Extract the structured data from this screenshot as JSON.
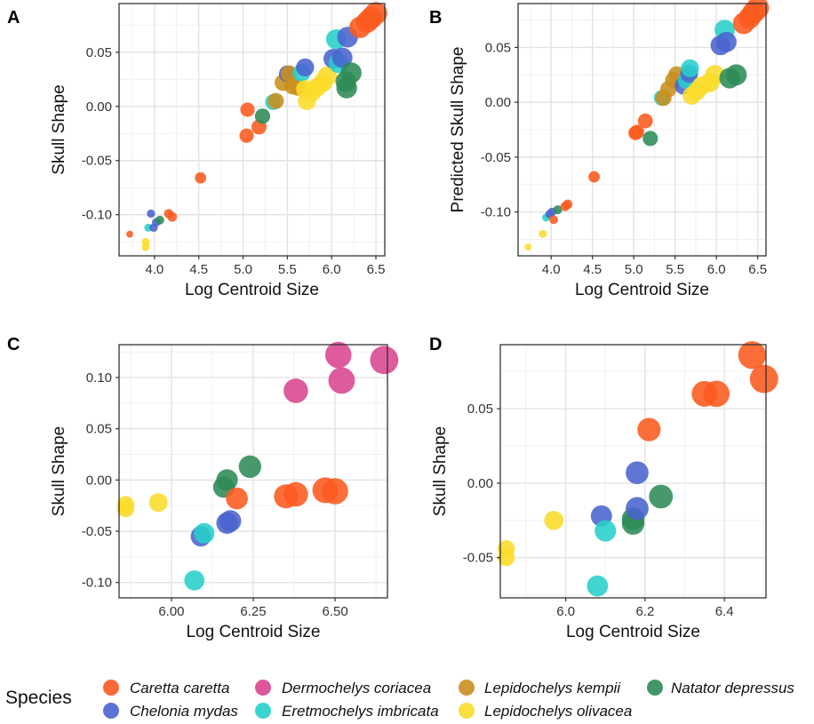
{
  "legend": {
    "title": "Species",
    "species": [
      {
        "name": "Caretta caretta",
        "color": "#FB5A1E"
      },
      {
        "name": "Chelonia mydas",
        "color": "#4A63CF"
      },
      {
        "name": "Dermochelys coriacea",
        "color": "#D9448F"
      },
      {
        "name": "Eretmochelys imbricata",
        "color": "#27CFCB"
      },
      {
        "name": "Lepidochelys kempii",
        "color": "#C98F1E"
      },
      {
        "name": "Lepidochelys olivacea",
        "color": "#FADC2A"
      },
      {
        "name": "Natator depressus",
        "color": "#2E8B57"
      }
    ]
  },
  "chart_data": [
    {
      "panel": "A",
      "type": "scatter",
      "xlabel": "Log Centroid Size",
      "ylabel": "Skull Shape",
      "xlim": [
        3.6,
        6.6
      ],
      "ylim": [
        -0.138,
        0.095
      ],
      "xticks": [
        4.0,
        4.5,
        5.0,
        5.5,
        6.0,
        6.5
      ],
      "xtick_labels": [
        "4.0",
        "4.5",
        "5.0",
        "5.5",
        "6.0",
        "6.5"
      ],
      "yticks": [
        -0.1,
        -0.05,
        0.0,
        0.05
      ],
      "ytick_labels": [
        "-0.10",
        "-0.05",
        "0.00",
        "0.05"
      ],
      "grid": true,
      "points": [
        {
          "x": 3.72,
          "y": -0.118,
          "s": 0
        },
        {
          "x": 3.9,
          "y": -0.125,
          "s": 5
        },
        {
          "x": 3.9,
          "y": -0.13,
          "s": 5
        },
        {
          "x": 3.93,
          "y": -0.112,
          "s": 3
        },
        {
          "x": 3.96,
          "y": -0.099,
          "s": 1
        },
        {
          "x": 3.99,
          "y": -0.112,
          "s": 1
        },
        {
          "x": 4.02,
          "y": -0.107,
          "s": 1
        },
        {
          "x": 4.06,
          "y": -0.105,
          "s": 6
        },
        {
          "x": 4.16,
          "y": -0.099,
          "s": 0
        },
        {
          "x": 4.2,
          "y": -0.102,
          "s": 0
        },
        {
          "x": 4.52,
          "y": -0.066,
          "s": 0
        },
        {
          "x": 5.05,
          "y": -0.003,
          "s": 0
        },
        {
          "x": 5.04,
          "y": -0.027,
          "s": 0
        },
        {
          "x": 5.18,
          "y": -0.019,
          "s": 0
        },
        {
          "x": 5.22,
          "y": -0.009,
          "s": 6
        },
        {
          "x": 5.34,
          "y": 0.004,
          "s": 3
        },
        {
          "x": 5.37,
          "y": 0.005,
          "s": 4
        },
        {
          "x": 5.45,
          "y": 0.022,
          "s": 4
        },
        {
          "x": 5.5,
          "y": 0.03,
          "s": 1
        },
        {
          "x": 5.52,
          "y": 0.03,
          "s": 4
        },
        {
          "x": 5.56,
          "y": 0.019,
          "s": 4
        },
        {
          "x": 5.62,
          "y": 0.018,
          "s": 4
        },
        {
          "x": 5.7,
          "y": 0.036,
          "s": 1
        },
        {
          "x": 5.66,
          "y": 0.031,
          "s": 3
        },
        {
          "x": 5.7,
          "y": 0.016,
          "s": 5
        },
        {
          "x": 5.72,
          "y": 0.005,
          "s": 5
        },
        {
          "x": 5.78,
          "y": 0.013,
          "s": 5
        },
        {
          "x": 5.84,
          "y": 0.018,
          "s": 5
        },
        {
          "x": 5.9,
          "y": 0.022,
          "s": 5
        },
        {
          "x": 5.95,
          "y": 0.028,
          "s": 5
        },
        {
          "x": 6.02,
          "y": 0.044,
          "s": 1
        },
        {
          "x": 6.05,
          "y": 0.062,
          "s": 3
        },
        {
          "x": 6.08,
          "y": 0.04,
          "s": 3
        },
        {
          "x": 6.12,
          "y": 0.045,
          "s": 1
        },
        {
          "x": 6.16,
          "y": 0.023,
          "s": 6
        },
        {
          "x": 6.17,
          "y": 0.017,
          "s": 6
        },
        {
          "x": 6.22,
          "y": 0.031,
          "s": 6
        },
        {
          "x": 6.18,
          "y": 0.064,
          "s": 1
        },
        {
          "x": 6.32,
          "y": 0.073,
          "s": 0
        },
        {
          "x": 6.4,
          "y": 0.078,
          "s": 0
        },
        {
          "x": 6.45,
          "y": 0.082,
          "s": 0
        },
        {
          "x": 6.5,
          "y": 0.086,
          "s": 0
        }
      ]
    },
    {
      "panel": "B",
      "type": "scatter",
      "xlabel": "Log Centroid Size",
      "ylabel": "Predicted Skull Shape",
      "xlim": [
        3.6,
        6.6
      ],
      "ylim": [
        -0.14,
        0.09
      ],
      "xticks": [
        4.0,
        4.5,
        5.0,
        5.5,
        6.0,
        6.5
      ],
      "xtick_labels": [
        "4.0",
        "4.5",
        "5.0",
        "5.5",
        "6.0",
        "6.5"
      ],
      "yticks": [
        -0.1,
        -0.05,
        0.0,
        0.05
      ],
      "ytick_labels": [
        "-0.10",
        "-0.05",
        "0.00",
        "0.05"
      ],
      "grid": true,
      "points": [
        {
          "x": 3.72,
          "y": -0.132,
          "s": 5
        },
        {
          "x": 3.9,
          "y": -0.12,
          "s": 5
        },
        {
          "x": 3.94,
          "y": -0.105,
          "s": 3
        },
        {
          "x": 3.98,
          "y": -0.102,
          "s": 1
        },
        {
          "x": 4.01,
          "y": -0.1,
          "s": 1
        },
        {
          "x": 4.03,
          "y": -0.107,
          "s": 0
        },
        {
          "x": 4.08,
          "y": -0.098,
          "s": 6
        },
        {
          "x": 4.17,
          "y": -0.095,
          "s": 0
        },
        {
          "x": 4.2,
          "y": -0.093,
          "s": 0
        },
        {
          "x": 4.52,
          "y": -0.068,
          "s": 0
        },
        {
          "x": 5.02,
          "y": -0.028,
          "s": 0
        },
        {
          "x": 5.04,
          "y": -0.027,
          "s": 0
        },
        {
          "x": 5.14,
          "y": -0.017,
          "s": 0
        },
        {
          "x": 5.2,
          "y": -0.033,
          "s": 6
        },
        {
          "x": 5.34,
          "y": 0.004,
          "s": 3
        },
        {
          "x": 5.36,
          "y": 0.004,
          "s": 4
        },
        {
          "x": 5.42,
          "y": 0.012,
          "s": 4
        },
        {
          "x": 5.48,
          "y": 0.02,
          "s": 4
        },
        {
          "x": 5.52,
          "y": 0.025,
          "s": 4
        },
        {
          "x": 5.6,
          "y": 0.015,
          "s": 1
        },
        {
          "x": 5.64,
          "y": 0.02,
          "s": 3
        },
        {
          "x": 5.67,
          "y": 0.026,
          "s": 1
        },
        {
          "x": 5.68,
          "y": 0.031,
          "s": 3
        },
        {
          "x": 5.7,
          "y": 0.006,
          "s": 5
        },
        {
          "x": 5.76,
          "y": 0.01,
          "s": 5
        },
        {
          "x": 5.82,
          "y": 0.015,
          "s": 5
        },
        {
          "x": 5.92,
          "y": 0.018,
          "s": 5
        },
        {
          "x": 5.98,
          "y": 0.025,
          "s": 5
        },
        {
          "x": 6.05,
          "y": 0.052,
          "s": 1
        },
        {
          "x": 6.12,
          "y": 0.055,
          "s": 1
        },
        {
          "x": 6.1,
          "y": 0.066,
          "s": 3
        },
        {
          "x": 6.16,
          "y": 0.022,
          "s": 6
        },
        {
          "x": 6.24,
          "y": 0.025,
          "s": 6
        },
        {
          "x": 6.33,
          "y": 0.072,
          "s": 0
        },
        {
          "x": 6.4,
          "y": 0.077,
          "s": 0
        },
        {
          "x": 6.45,
          "y": 0.082,
          "s": 0
        },
        {
          "x": 6.5,
          "y": 0.086,
          "s": 0
        }
      ]
    },
    {
      "panel": "C",
      "type": "scatter",
      "xlabel": "Log Centroid Size",
      "ylabel": "Skull Shape",
      "xlim": [
        5.84,
        6.66
      ],
      "ylim": [
        -0.115,
        0.132
      ],
      "xticks": [
        6.0,
        6.25,
        6.5
      ],
      "xtick_labels": [
        "6.00",
        "6.25",
        "6.50"
      ],
      "yticks": [
        -0.1,
        -0.05,
        0.0,
        0.05,
        0.1
      ],
      "ytick_labels": [
        "-0.10",
        "-0.05",
        "0.00",
        "0.05",
        "0.10"
      ],
      "grid": true,
      "points": [
        {
          "x": 5.86,
          "y": -0.024,
          "s": 5
        },
        {
          "x": 5.86,
          "y": -0.028,
          "s": 5
        },
        {
          "x": 5.96,
          "y": -0.022,
          "s": 5
        },
        {
          "x": 6.07,
          "y": -0.098,
          "s": 3
        },
        {
          "x": 6.09,
          "y": -0.055,
          "s": 1
        },
        {
          "x": 6.1,
          "y": -0.052,
          "s": 3
        },
        {
          "x": 6.16,
          "y": -0.007,
          "s": 6
        },
        {
          "x": 6.17,
          "y": 0.0,
          "s": 6
        },
        {
          "x": 6.17,
          "y": -0.042,
          "s": 1
        },
        {
          "x": 6.18,
          "y": -0.04,
          "s": 1
        },
        {
          "x": 6.2,
          "y": -0.018,
          "s": 0
        },
        {
          "x": 6.24,
          "y": 0.013,
          "s": 6
        },
        {
          "x": 6.35,
          "y": -0.016,
          "s": 0
        },
        {
          "x": 6.38,
          "y": -0.014,
          "s": 0
        },
        {
          "x": 6.38,
          "y": 0.087,
          "s": 2
        },
        {
          "x": 6.47,
          "y": -0.01,
          "s": 0
        },
        {
          "x": 6.5,
          "y": -0.011,
          "s": 0
        },
        {
          "x": 6.51,
          "y": 0.122,
          "s": 2
        },
        {
          "x": 6.52,
          "y": 0.097,
          "s": 2
        },
        {
          "x": 6.65,
          "y": 0.117,
          "s": 2
        }
      ]
    },
    {
      "panel": "D",
      "type": "scatter",
      "xlabel": "Log Centroid Size",
      "ylabel": "Skull Shape",
      "xlim": [
        5.835,
        6.505
      ],
      "ylim": [
        -0.077,
        0.093
      ],
      "xticks": [
        6.0,
        6.2,
        6.4
      ],
      "xtick_labels": [
        "6.0",
        "6.2",
        "6.4"
      ],
      "yticks": [
        -0.05,
        0.0,
        0.05
      ],
      "ytick_labels": [
        "-0.05",
        "0.00",
        "0.05"
      ],
      "grid": true,
      "points": [
        {
          "x": 5.85,
          "y": -0.044,
          "s": 5
        },
        {
          "x": 5.85,
          "y": -0.05,
          "s": 5
        },
        {
          "x": 5.97,
          "y": -0.025,
          "s": 5
        },
        {
          "x": 6.08,
          "y": -0.069,
          "s": 3
        },
        {
          "x": 6.09,
          "y": -0.022,
          "s": 1
        },
        {
          "x": 6.1,
          "y": -0.032,
          "s": 3
        },
        {
          "x": 6.17,
          "y": -0.024,
          "s": 6
        },
        {
          "x": 6.17,
          "y": -0.027,
          "s": 6
        },
        {
          "x": 6.18,
          "y": -0.017,
          "s": 1
        },
        {
          "x": 6.18,
          "y": 0.007,
          "s": 1
        },
        {
          "x": 6.21,
          "y": 0.036,
          "s": 0
        },
        {
          "x": 6.24,
          "y": -0.009,
          "s": 6
        },
        {
          "x": 6.35,
          "y": 0.06,
          "s": 0
        },
        {
          "x": 6.38,
          "y": 0.06,
          "s": 0
        },
        {
          "x": 6.47,
          "y": 0.086,
          "s": 0
        },
        {
          "x": 6.5,
          "y": 0.07,
          "s": 0
        }
      ]
    }
  ]
}
